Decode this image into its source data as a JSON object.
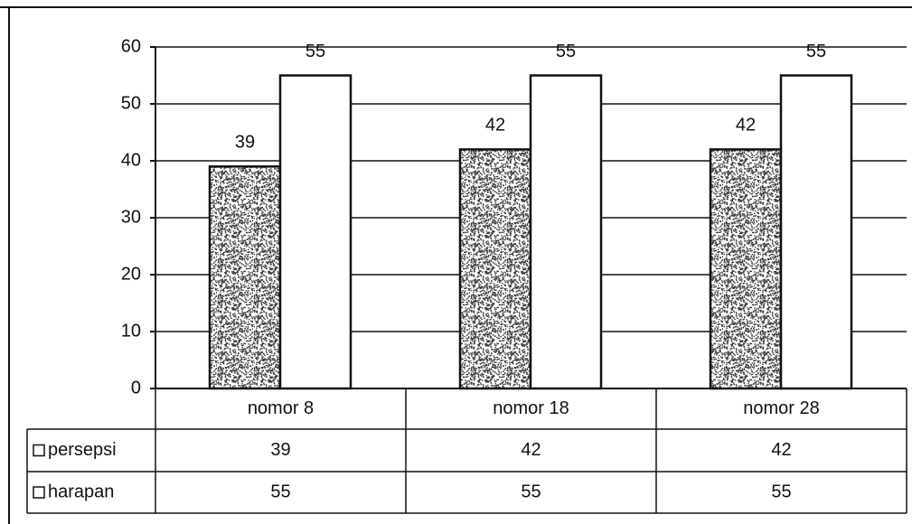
{
  "chart_data": {
    "type": "bar",
    "categories": [
      "nomor 8",
      "nomor 18",
      "nomor 28"
    ],
    "series": [
      {
        "name": "persepsi",
        "color": "#3a3a3a",
        "values": [
          39,
          42,
          42
        ]
      },
      {
        "name": "harapan",
        "color": "#ffffff",
        "values": [
          55,
          55,
          55
        ]
      }
    ],
    "ylim": [
      0,
      60
    ],
    "yticks": [
      0,
      10,
      20,
      30,
      40,
      50,
      60
    ],
    "grid": true,
    "data_table": true
  }
}
